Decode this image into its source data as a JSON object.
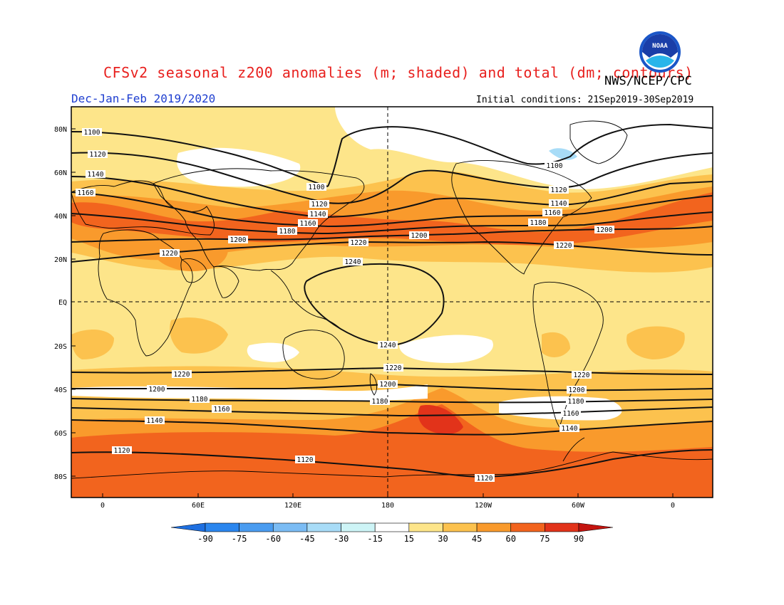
{
  "title": "CFSv2 seasonal z200 anomalies (m; shaded) and total (dm; contours)",
  "agency": "NWS/NCEP/CPC",
  "logo_text": "NOAA",
  "period": "Dec-Jan-Feb 2019/2020",
  "initial_conditions": "Initial conditions: 21Sep2019-30Sep2019",
  "lat_labels": [
    "80N",
    "60N",
    "40N",
    "20N",
    "EQ",
    "20S",
    "40S",
    "60S",
    "80S"
  ],
  "lon_labels": [
    "0",
    "60E",
    "120E",
    "180",
    "120W",
    "60W",
    "0"
  ],
  "colorbar": {
    "ticks": [
      "-90",
      "-75",
      "-60",
      "-45",
      "-30",
      "-15",
      "15",
      "30",
      "45",
      "60",
      "75",
      "90"
    ],
    "colors": [
      "#1e6fe0",
      "#2b86ee",
      "#4a9cf0",
      "#7bbcf4",
      "#a8dcf7",
      "#cdf4f6",
      "#ffffff",
      "#fde58a",
      "#fcc24e",
      "#f99a2c",
      "#f2641e",
      "#e2331a",
      "#c4140f"
    ]
  },
  "contour_labels": [
    "1100",
    "1120",
    "1140",
    "1160",
    "1180",
    "1200",
    "1220",
    "1240"
  ]
}
